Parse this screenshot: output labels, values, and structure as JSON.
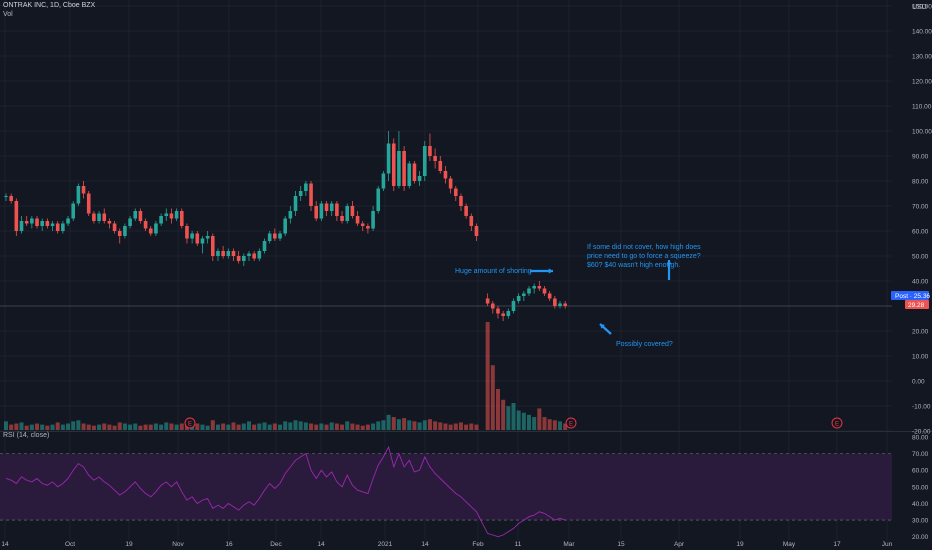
{
  "header": {
    "symbol": "ONTRAK INC, 1D, Cboe BZX",
    "volume_label": "Vol",
    "currency": "USD"
  },
  "price_axis": {
    "ticks": [
      "150.00",
      "140.00",
      "130.00",
      "120.00",
      "110.00",
      "100.00",
      "90.00",
      "80.00",
      "70.00",
      "60.00",
      "50.00",
      "40.00",
      "30.00",
      "20.00",
      "10.00",
      "0.00",
      "-10.00",
      "-20.00"
    ],
    "last_badge": "Post · 25.36",
    "close_badge": "29.28"
  },
  "rsi": {
    "label": "RSI (14, close)",
    "ticks": [
      "80.00",
      "70.00",
      "60.00",
      "50.00",
      "40.00",
      "30.00",
      "20.00"
    ],
    "upper": 70,
    "lower": 30
  },
  "time_axis": [
    "14",
    "Oct",
    "19",
    "Nov",
    "16",
    "Dec",
    "14",
    "2021",
    "14",
    "Feb",
    "11",
    "Mar",
    "15",
    "Apr",
    "19",
    "May",
    "17",
    "Jun"
  ],
  "annotations": {
    "shorting": "Huge amount of shorting",
    "covered": "Possibly covered?",
    "question": [
      "If some did not cover, how high does",
      "price need to go to force a squeeze?",
      "$60? $40 wasn't high enough."
    ]
  },
  "earnings_marker": "E",
  "colors": {
    "background": "#131722",
    "up": "#26a69a",
    "down": "#ef5350",
    "rsi_line": "#9c27b0",
    "rsi_band": "#2a1b3d",
    "annotation": "#2196f3",
    "post_badge": "#2962ff"
  },
  "chart_data": {
    "type": "candlestick",
    "series": [
      {
        "name": "price",
        "values": [
          [
            74,
            75,
            72,
            74
          ],
          [
            74,
            75,
            71,
            72
          ],
          [
            72,
            73,
            58,
            60
          ],
          [
            60,
            66,
            59,
            64
          ],
          [
            64,
            66,
            62,
            63
          ],
          [
            63,
            66,
            61,
            65
          ],
          [
            65,
            66,
            61,
            62
          ],
          [
            62,
            65,
            60,
            64
          ],
          [
            64,
            65,
            61,
            62
          ],
          [
            62,
            64,
            60,
            63
          ],
          [
            63,
            64,
            59,
            60
          ],
          [
            60,
            64,
            59,
            63
          ],
          [
            63,
            66,
            62,
            65
          ],
          [
            65,
            72,
            64,
            71
          ],
          [
            71,
            79,
            70,
            78
          ],
          [
            78,
            80,
            73,
            75
          ],
          [
            75,
            76,
            66,
            67
          ],
          [
            67,
            68,
            63,
            64
          ],
          [
            64,
            68,
            63,
            67
          ],
          [
            67,
            69,
            63,
            64
          ],
          [
            64,
            65,
            61,
            63
          ],
          [
            63,
            64,
            59,
            60
          ],
          [
            60,
            61,
            55,
            58
          ],
          [
            58,
            63,
            57,
            62
          ],
          [
            62,
            66,
            61,
            65
          ],
          [
            65,
            69,
            64,
            68
          ],
          [
            68,
            69,
            63,
            64
          ],
          [
            64,
            65,
            60,
            61
          ],
          [
            61,
            62,
            58,
            59
          ],
          [
            59,
            64,
            58,
            63
          ],
          [
            63,
            67,
            62,
            66
          ],
          [
            66,
            69,
            64,
            67
          ],
          [
            67,
            69,
            63,
            65
          ],
          [
            65,
            69,
            64,
            68
          ],
          [
            68,
            69,
            61,
            62
          ],
          [
            62,
            63,
            55,
            57
          ],
          [
            57,
            60,
            55,
            59
          ],
          [
            59,
            60,
            54,
            55
          ],
          [
            55,
            58,
            51,
            57
          ],
          [
            57,
            60,
            55,
            58
          ],
          [
            58,
            59,
            48,
            50
          ],
          [
            50,
            53,
            48,
            52
          ],
          [
            52,
            54,
            49,
            50
          ],
          [
            50,
            53,
            49,
            52
          ],
          [
            52,
            53,
            48,
            50
          ],
          [
            50,
            52,
            47,
            48
          ],
          [
            48,
            51,
            46,
            50
          ],
          [
            50,
            52,
            48,
            51
          ],
          [
            51,
            52,
            48,
            49
          ],
          [
            49,
            53,
            48,
            52
          ],
          [
            52,
            57,
            51,
            56
          ],
          [
            56,
            60,
            55,
            59
          ],
          [
            59,
            61,
            56,
            57
          ],
          [
            57,
            60,
            56,
            59
          ],
          [
            59,
            66,
            58,
            65
          ],
          [
            65,
            70,
            63,
            68
          ],
          [
            68,
            76,
            66,
            74
          ],
          [
            74,
            78,
            72,
            76
          ],
          [
            76,
            80,
            74,
            79
          ],
          [
            79,
            80,
            68,
            70
          ],
          [
            70,
            72,
            64,
            65
          ],
          [
            65,
            72,
            64,
            71
          ],
          [
            71,
            72,
            66,
            68
          ],
          [
            68,
            72,
            66,
            71
          ],
          [
            71,
            72,
            64,
            66
          ],
          [
            66,
            68,
            63,
            64
          ],
          [
            64,
            71,
            63,
            70
          ],
          [
            70,
            72,
            65,
            66
          ],
          [
            66,
            68,
            62,
            63
          ],
          [
            63,
            64,
            60,
            62
          ],
          [
            62,
            63,
            59,
            61
          ],
          [
            61,
            70,
            60,
            68
          ],
          [
            68,
            78,
            67,
            77
          ],
          [
            77,
            84,
            76,
            83
          ],
          [
            83,
            100,
            80,
            95
          ],
          [
            95,
            97,
            76,
            78
          ],
          [
            78,
            100,
            77,
            92
          ],
          [
            92,
            94,
            76,
            78
          ],
          [
            78,
            88,
            77,
            87
          ],
          [
            87,
            88,
            79,
            80
          ],
          [
            80,
            84,
            78,
            82
          ],
          [
            82,
            96,
            80,
            94
          ],
          [
            94,
            99,
            88,
            90
          ],
          [
            90,
            93,
            85,
            88
          ],
          [
            88,
            90,
            83,
            84
          ],
          [
            84,
            86,
            79,
            81
          ],
          [
            81,
            82,
            75,
            77
          ],
          [
            77,
            78,
            72,
            74
          ],
          [
            74,
            75,
            68,
            70
          ],
          [
            70,
            71,
            65,
            66
          ],
          [
            66,
            67,
            60,
            62
          ],
          [
            62,
            63,
            56,
            58
          ],
          [
            33,
            35,
            30,
            31
          ],
          [
            31,
            32,
            27,
            29
          ],
          [
            29,
            30,
            25,
            27
          ],
          [
            27,
            28,
            24,
            26
          ],
          [
            26,
            29,
            25,
            28
          ],
          [
            28,
            33,
            27,
            32
          ],
          [
            32,
            35,
            31,
            34
          ],
          [
            34,
            36,
            32,
            35
          ],
          [
            35,
            38,
            34,
            37
          ],
          [
            37,
            39,
            35,
            38
          ],
          [
            38,
            40,
            36,
            37
          ],
          [
            37,
            38,
            34,
            35
          ],
          [
            35,
            36,
            32,
            33
          ],
          [
            33,
            34,
            29,
            30
          ],
          [
            30,
            32,
            29,
            31
          ],
          [
            31,
            32,
            29,
            30
          ]
        ]
      },
      {
        "name": "Vol",
        "values": [
          8,
          5,
          6,
          7,
          4,
          5,
          6,
          5,
          4,
          5,
          7,
          5,
          6,
          8,
          9,
          6,
          5,
          4,
          5,
          6,
          5,
          4,
          7,
          6,
          5,
          6,
          4,
          5,
          5,
          6,
          5,
          7,
          6,
          5,
          6,
          8,
          5,
          6,
          5,
          4,
          9,
          5,
          6,
          5,
          7,
          5,
          6,
          8,
          5,
          6,
          7,
          5,
          6,
          5,
          8,
          7,
          9,
          8,
          7,
          6,
          5,
          6,
          5,
          7,
          6,
          5,
          8,
          6,
          5,
          4,
          5,
          6,
          8,
          9,
          14,
          12,
          10,
          11,
          9,
          8,
          7,
          9,
          10,
          8,
          7,
          6,
          5,
          6,
          7,
          5,
          6,
          5,
          100,
          60,
          38,
          28,
          22,
          25,
          18,
          16,
          14,
          12,
          20,
          12,
          10,
          9,
          8,
          6
        ]
      },
      {
        "name": "RSI (14, close)",
        "values": [
          55,
          54,
          52,
          56,
          54,
          53,
          55,
          52,
          51,
          53,
          50,
          52,
          55,
          60,
          64,
          62,
          57,
          54,
          56,
          53,
          51,
          48,
          45,
          47,
          50,
          53,
          49,
          46,
          44,
          47,
          51,
          53,
          50,
          53,
          47,
          42,
          44,
          40,
          42,
          43,
          37,
          39,
          37,
          40,
          38,
          36,
          39,
          41,
          39,
          43,
          48,
          52,
          49,
          52,
          58,
          62,
          66,
          68,
          70,
          60,
          55,
          60,
          56,
          59,
          53,
          50,
          57,
          51,
          48,
          47,
          46,
          55,
          63,
          68,
          74,
          62,
          70,
          62,
          66,
          59,
          60,
          68,
          62,
          58,
          55,
          52,
          49,
          46,
          44,
          41,
          38,
          35,
          22,
          21,
          20,
          21,
          23,
          25,
          28,
          30,
          32,
          33,
          35,
          34,
          32,
          30,
          31,
          30
        ]
      }
    ]
  }
}
